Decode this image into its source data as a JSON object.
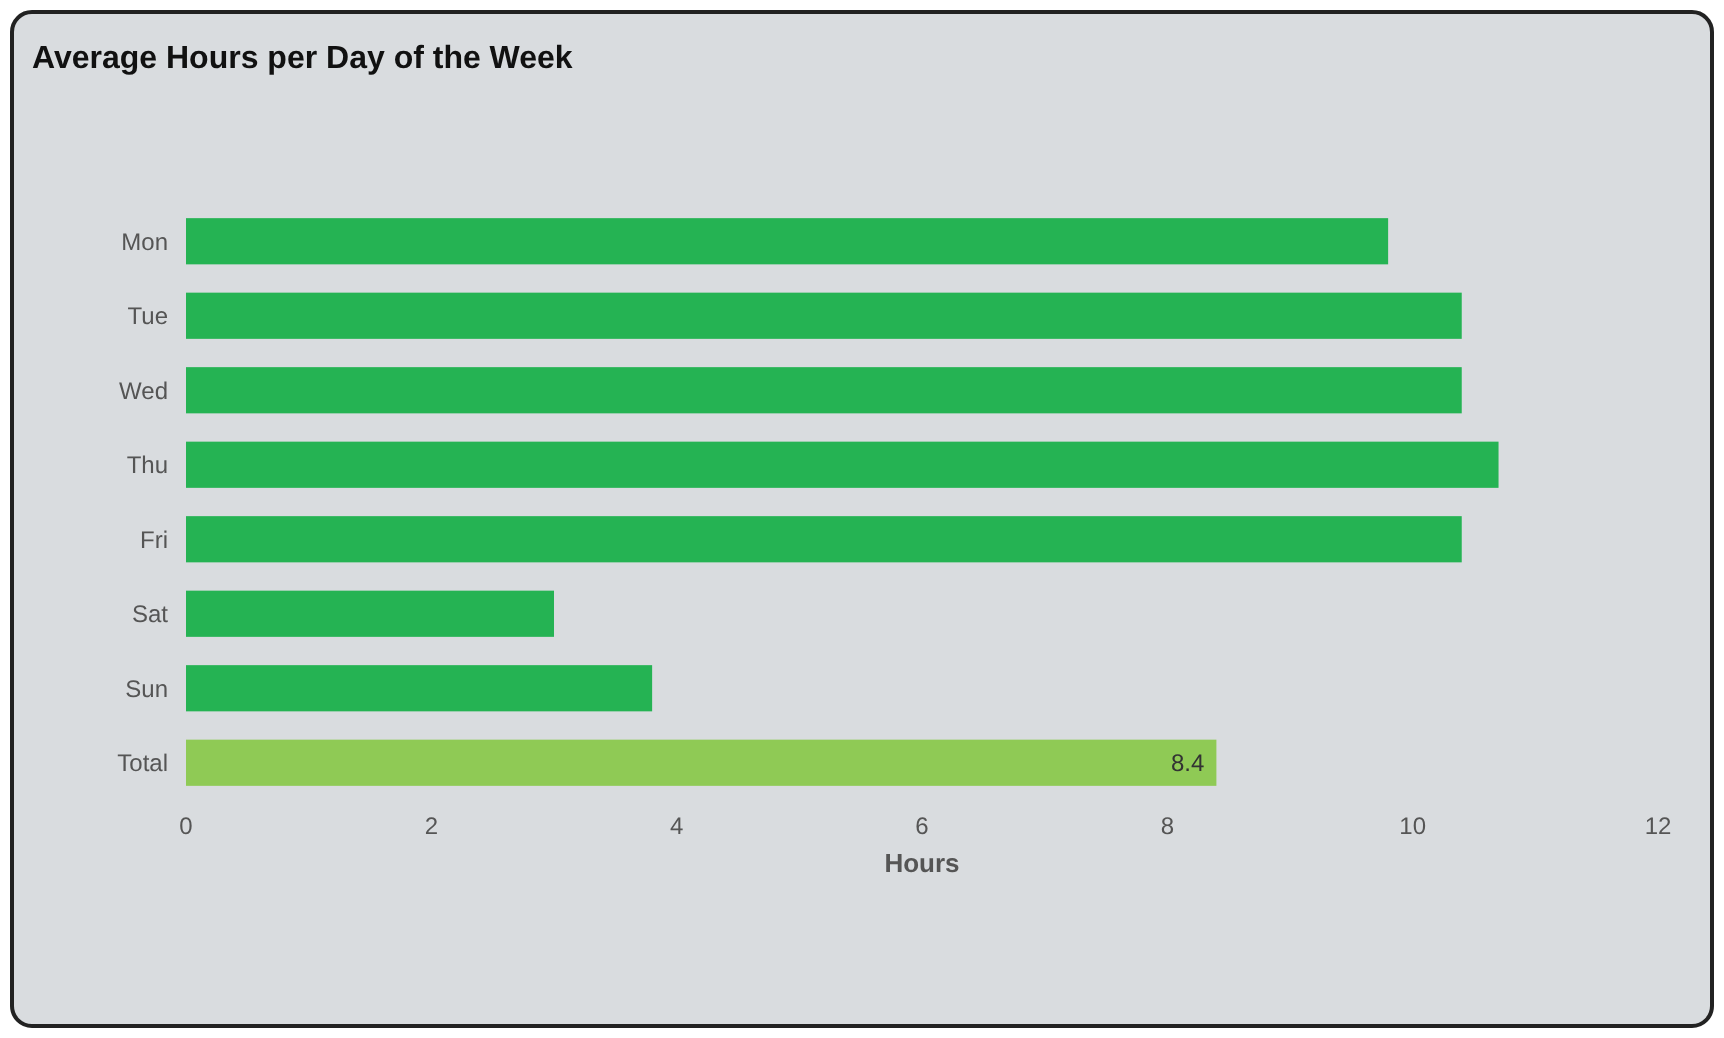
{
  "chart_data": {
    "type": "bar",
    "orientation": "horizontal",
    "title": "Average Hours per Day of the Week",
    "xlabel": "Hours",
    "categories": [
      "Mon",
      "Tue",
      "Wed",
      "Thu",
      "Fri",
      "Sat",
      "Sun",
      "Total"
    ],
    "values": [
      9.8,
      10.4,
      10.4,
      10.7,
      10.4,
      3.0,
      3.8,
      8.4
    ],
    "colors": [
      "#25b353",
      "#25b353",
      "#25b353",
      "#25b353",
      "#25b353",
      "#25b353",
      "#25b353",
      "#8fca55"
    ],
    "value_labels": [
      null,
      null,
      null,
      null,
      null,
      null,
      null,
      "8.4"
    ],
    "xlim": [
      0,
      12
    ],
    "xticks": [
      0,
      2,
      4,
      6,
      8,
      10,
      12
    ]
  }
}
